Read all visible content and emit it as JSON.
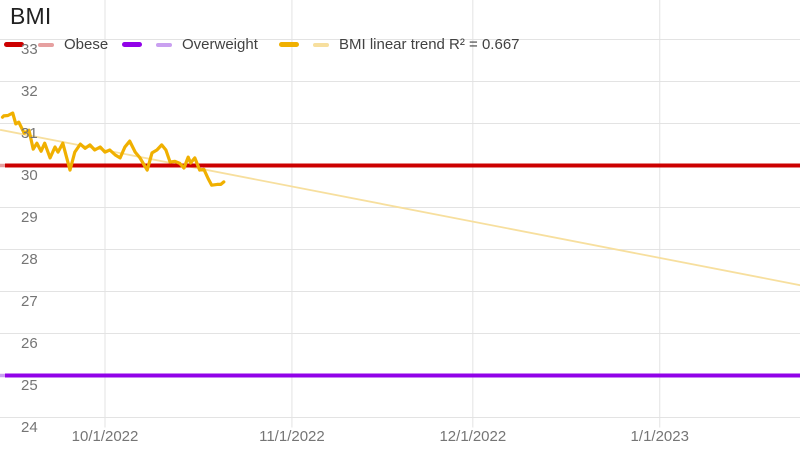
{
  "title": "BMI",
  "legend": {
    "items": [
      {
        "label": "Obese",
        "line_color": "#cc0000",
        "trend_color": "#e6a0a0"
      },
      {
        "label": "Overweight",
        "line_color": "#9102e8",
        "trend_color": "#c9a0f0"
      },
      {
        "label": "BMI linear trend R² = 0.667",
        "line_color": "#f0b000",
        "trend_color": "#f7df9e"
      }
    ]
  },
  "colors": {
    "background": "#ffffff",
    "gridline": "#e3e3e3",
    "axis_text": "#757575",
    "legend_text": "#424242",
    "title_text": "#212121",
    "bmi_line": "#f0b000",
    "bmi_trend": "#f7df9e",
    "obese_line": "#cc0000",
    "obese_trend": "#e6a0a0",
    "overweight_line": "#9102e8",
    "overweight_trend": "#c9a0f0"
  },
  "y_axis": {
    "ticks": [
      {
        "label": "33",
        "value": 33
      },
      {
        "label": "32",
        "value": 32
      },
      {
        "label": "31",
        "value": 31
      },
      {
        "label": "30",
        "value": 30
      },
      {
        "label": "29",
        "value": 29
      },
      {
        "label": "28",
        "value": 28
      },
      {
        "label": "27",
        "value": 27
      },
      {
        "label": "26",
        "value": 26
      },
      {
        "label": "25",
        "value": 25
      },
      {
        "label": "24",
        "value": 24
      }
    ]
  },
  "x_axis": {
    "start_date": "2022-09-14",
    "ticks": [
      {
        "label": "10/1/2022",
        "day": 17
      },
      {
        "label": "11/1/2022",
        "day": 48
      },
      {
        "label": "12/1/2022",
        "day": 78
      },
      {
        "label": "1/1/2023",
        "day": 109
      }
    ]
  },
  "chart_data": {
    "type": "line",
    "title": "BMI",
    "ylim": [
      24,
      33
    ],
    "x_unit": "days since 2022-09-14",
    "x_range_days": [
      -0.4,
      132.3
    ],
    "grid": true,
    "legend_position": "top",
    "series": [
      {
        "name": "BMI",
        "color": "#f0b000",
        "points": [
          [
            0.0,
            31.15
          ],
          [
            0.2,
            31.18
          ],
          [
            0.9,
            31.19
          ],
          [
            1.7,
            31.25
          ],
          [
            2.2,
            30.99
          ],
          [
            2.7,
            31.03
          ],
          [
            3.6,
            30.77
          ],
          [
            4.4,
            30.84
          ],
          [
            5.1,
            30.39
          ],
          [
            5.7,
            30.53
          ],
          [
            6.4,
            30.34
          ],
          [
            7.0,
            30.53
          ],
          [
            7.9,
            30.18
          ],
          [
            8.7,
            30.44
          ],
          [
            9.2,
            30.32
          ],
          [
            10.0,
            30.53
          ],
          [
            11.2,
            29.89
          ],
          [
            12.0,
            30.32
          ],
          [
            12.9,
            30.51
          ],
          [
            13.7,
            30.41
          ],
          [
            14.5,
            30.49
          ],
          [
            15.3,
            30.37
          ],
          [
            16.2,
            30.44
          ],
          [
            17.0,
            30.32
          ],
          [
            17.8,
            30.37
          ],
          [
            18.7,
            30.25
          ],
          [
            19.5,
            30.18
          ],
          [
            20.3,
            30.44
          ],
          [
            21.1,
            30.58
          ],
          [
            22.0,
            30.32
          ],
          [
            22.8,
            30.18
          ],
          [
            24.0,
            29.89
          ],
          [
            24.8,
            30.3
          ],
          [
            25.6,
            30.37
          ],
          [
            26.4,
            30.49
          ],
          [
            27.1,
            30.37
          ],
          [
            27.8,
            30.08
          ],
          [
            28.6,
            30.1
          ],
          [
            29.4,
            30.05
          ],
          [
            30.1,
            29.94
          ],
          [
            30.8,
            30.2
          ],
          [
            31.2,
            30.06
          ],
          [
            31.9,
            30.18
          ],
          [
            32.7,
            29.89
          ],
          [
            33.4,
            29.91
          ],
          [
            34.1,
            29.69
          ],
          [
            34.7,
            29.53
          ],
          [
            35.6,
            29.55
          ],
          [
            36.2,
            29.55
          ],
          [
            36.7,
            29.61
          ]
        ]
      },
      {
        "name": "Obese",
        "color": "#cc0000",
        "constant": 30
      },
      {
        "name": "Overweight",
        "color": "#9102e8",
        "constant": 25
      },
      {
        "name": "Obese linear trend",
        "color": "#e6a0a0",
        "constant": 30
      },
      {
        "name": "Overweight linear trend",
        "color": "#c9a0f0",
        "constant": 25
      },
      {
        "name": "BMI linear trend",
        "color": "#f7df9e",
        "r_squared": 0.667,
        "points": [
          [
            -0.4,
            30.85
          ],
          [
            132.3,
            27.15
          ]
        ]
      }
    ]
  }
}
